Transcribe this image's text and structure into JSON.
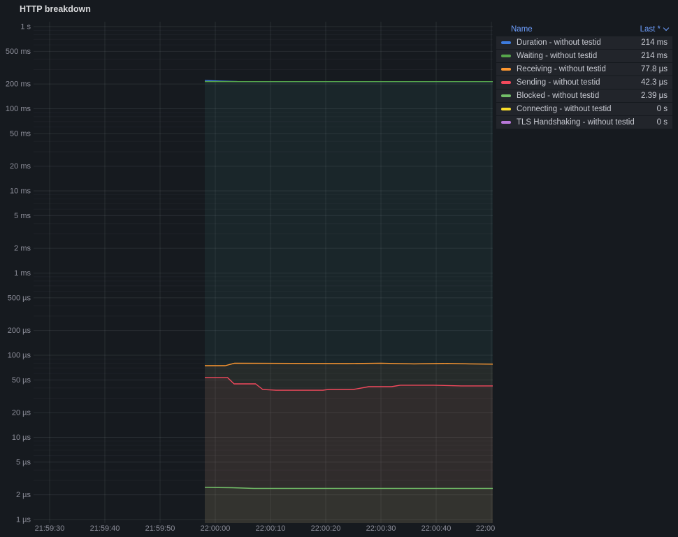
{
  "panel": {
    "title": "HTTP breakdown"
  },
  "legend": {
    "name_header": "Name",
    "last_header": "Last *"
  },
  "chart_data": {
    "type": "line",
    "y_scale": "log",
    "x_axis_kind": "time",
    "grid": true,
    "legend_position": "right-table",
    "x_ticks": [
      {
        "label": "21:59:30",
        "t": 0
      },
      {
        "label": "21:59:40",
        "t": 10
      },
      {
        "label": "21:59:50",
        "t": 20
      },
      {
        "label": "22:00:00",
        "t": 30
      },
      {
        "label": "22:00:10",
        "t": 40
      },
      {
        "label": "22:00:20",
        "t": 50
      },
      {
        "label": "22:00:30",
        "t": 60
      },
      {
        "label": "22:00:40",
        "t": 70
      },
      {
        "label": "22:00",
        "t": 80
      }
    ],
    "y_ticks": [
      {
        "label": "1 s",
        "v": 1
      },
      {
        "label": "500 ms",
        "v": 0.5
      },
      {
        "label": "200 ms",
        "v": 0.2
      },
      {
        "label": "100 ms",
        "v": 0.1
      },
      {
        "label": "50 ms",
        "v": 0.05
      },
      {
        "label": "20 ms",
        "v": 0.02
      },
      {
        "label": "10 ms",
        "v": 0.01
      },
      {
        "label": "5 ms",
        "v": 0.005
      },
      {
        "label": "2 ms",
        "v": 0.002
      },
      {
        "label": "1 ms",
        "v": 0.001
      },
      {
        "label": "500 µs",
        "v": 0.0005
      },
      {
        "label": "200 µs",
        "v": 0.0002
      },
      {
        "label": "100 µs",
        "v": 0.0001
      },
      {
        "label": "50 µs",
        "v": 5e-05
      },
      {
        "label": "20 µs",
        "v": 2e-05
      },
      {
        "label": "10 µs",
        "v": 1e-05
      },
      {
        "label": "5 µs",
        "v": 5e-06
      },
      {
        "label": "2 µs",
        "v": 2e-06
      },
      {
        "label": "1 µs",
        "v": 1e-06
      }
    ],
    "series": [
      {
        "name": "Duration - without testid",
        "color": "#3d7bdd",
        "last": "214 ms",
        "points": [
          [
            28.1,
            0.2205
          ],
          [
            31,
            0.217
          ],
          [
            34,
            0.2145
          ],
          [
            38,
            0.214
          ],
          [
            80.3,
            0.214
          ]
        ]
      },
      {
        "name": "Waiting - without testid",
        "color": "#56a64b",
        "last": "214 ms",
        "points": [
          [
            28.1,
            0.214
          ],
          [
            80.3,
            0.214
          ]
        ]
      },
      {
        "name": "Receiving - without testid",
        "color": "#ff9830",
        "last": "77.8 µs",
        "points": [
          [
            28.1,
            7.45e-05
          ],
          [
            31.8,
            7.45e-05
          ],
          [
            33.5,
            8e-05
          ],
          [
            44,
            7.95e-05
          ],
          [
            54,
            7.9e-05
          ],
          [
            60,
            8e-05
          ],
          [
            66,
            7.85e-05
          ],
          [
            72,
            7.95e-05
          ],
          [
            76,
            7.85e-05
          ],
          [
            80.3,
            7.78e-05
          ]
        ]
      },
      {
        "name": "Sending - without testid",
        "color": "#f2495c",
        "last": "42.3 µs",
        "points": [
          [
            28.1,
            5.35e-05
          ],
          [
            32.2,
            5.35e-05
          ],
          [
            33.4,
            4.48e-05
          ],
          [
            37.3,
            4.48e-05
          ],
          [
            38.6,
            3.83e-05
          ],
          [
            41,
            3.75e-05
          ],
          [
            49.5,
            3.75e-05
          ],
          [
            50.5,
            3.83e-05
          ],
          [
            55,
            3.83e-05
          ],
          [
            57.8,
            4.14e-05
          ],
          [
            61.9,
            4.14e-05
          ],
          [
            63.5,
            4.31e-05
          ],
          [
            69.5,
            4.31e-05
          ],
          [
            74.6,
            4.23e-05
          ],
          [
            80.3,
            4.23e-05
          ]
        ]
      },
      {
        "name": "Blocked - without testid",
        "color": "#73bf69",
        "last": "2.39 µs",
        "points": [
          [
            28.1,
            2.46e-06
          ],
          [
            33,
            2.44e-06
          ],
          [
            37,
            2.39e-06
          ],
          [
            80.3,
            2.39e-06
          ]
        ]
      },
      {
        "name": "Connecting - without testid",
        "color": "#fade2a",
        "last": "0 s",
        "points": []
      },
      {
        "name": "TLS Handshaking - without testid",
        "color": "#b877d9",
        "last": "0 s",
        "points": []
      }
    ]
  }
}
